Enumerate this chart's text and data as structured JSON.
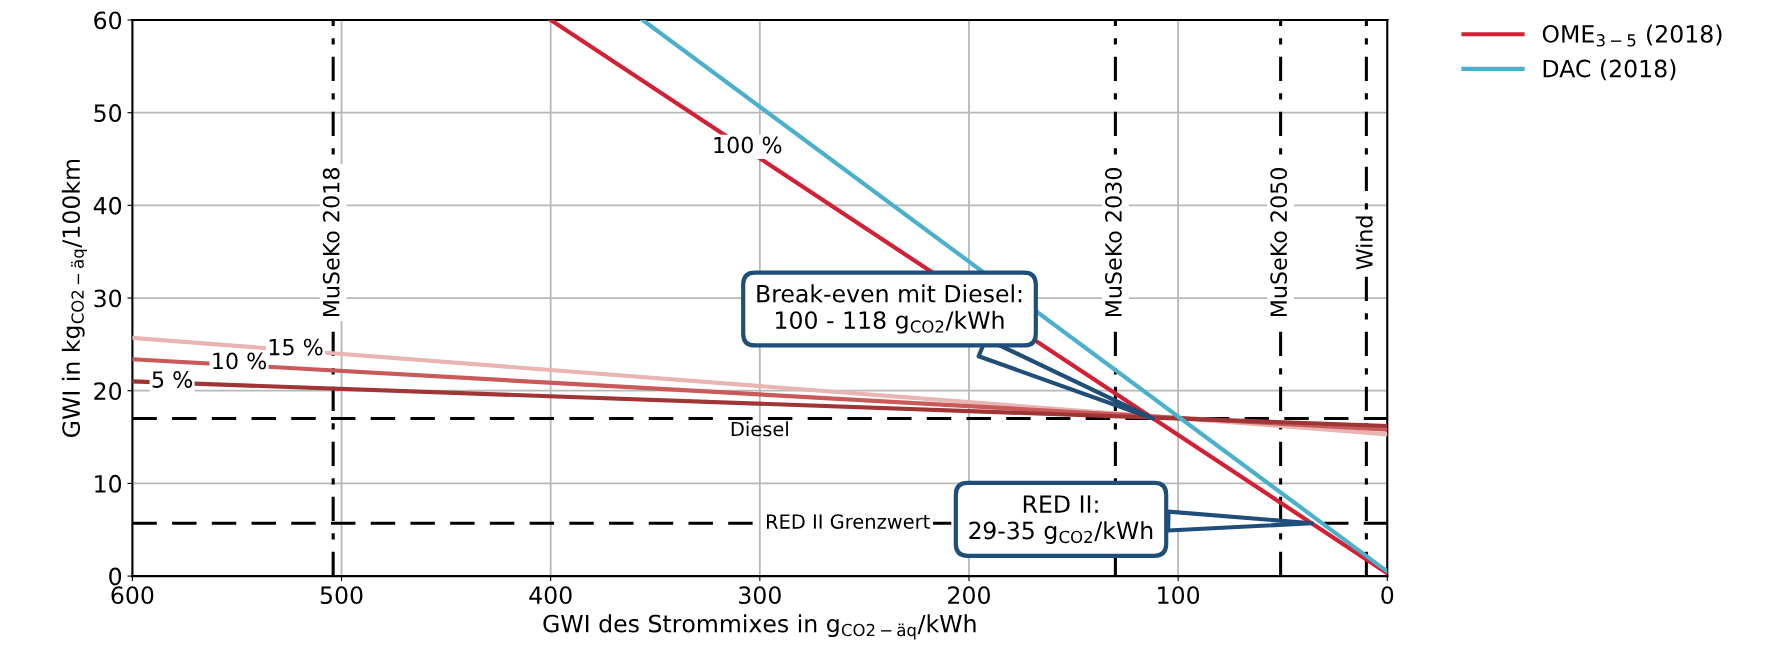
{
  "chart_data": {
    "type": "line",
    "xlabel": "GWI des Strommixes in g$_{CO2−äq}$/kWh",
    "ylabel": "GWI in kg$_{CO2−äq}$/100km",
    "xlim": [
      600,
      0
    ],
    "xticks": [
      600,
      500,
      400,
      300,
      200,
      100,
      0
    ],
    "ylim": [
      0,
      60
    ],
    "yticks": [
      0,
      10,
      20,
      30,
      40,
      50,
      60
    ],
    "grid": true,
    "legend": "top right",
    "line_style": "solid",
    "marker": "none",
    "series": [
      {
        "color": "#e8b4b4",
        "x": [
          600,
          0
        ],
        "values": [
          25.7,
          15.3
        ]
      },
      {
        "color": "#c85a5a",
        "x": [
          600,
          0
        ],
        "values": [
          23.4,
          15.8
        ]
      },
      {
        "color": "#a03535",
        "x": [
          600,
          0
        ],
        "values": [
          21.0,
          16.2
        ]
      },
      {
        "name": "OME$_{3−5}$ (2018)",
        "color": "#d42035",
        "x": [
          400,
          0
        ],
        "values": [
          60,
          0.3
        ]
      },
      {
        "name": "DAC (2018)",
        "color": "#4bb0cc",
        "x": [
          356,
          0
        ],
        "values": [
          60,
          0.5
        ]
      }
    ],
    "ref_lines": [
      {
        "axis": "y",
        "value": 17,
        "label": "Diesel",
        "line_style": "dashed",
        "color": "#000000"
      },
      {
        "axis": "y",
        "value": 5.7,
        "label": "RED II Grenzwert",
        "line_style": "dashed",
        "color": "#000000"
      },
      {
        "axis": "x",
        "value": 504,
        "label": "MuSeKo 2018",
        "line_style": "dashdot",
        "color": "#000000"
      },
      {
        "axis": "x",
        "value": 130,
        "label": "MuSeKo 2030",
        "line_style": "dashdot",
        "color": "#000000"
      },
      {
        "axis": "x",
        "value": 51,
        "label": "MuSeKo 2050",
        "line_style": "dashdot",
        "color": "#000000"
      },
      {
        "axis": "x",
        "value": 10,
        "label": "Wind",
        "line_style": "dashdot",
        "color": "#000000"
      }
    ],
    "annotations": [
      {
        "text": "100 %",
        "x": 306,
        "y": 46.3
      },
      {
        "text": "15 %",
        "x": 522,
        "y": 24.5
      },
      {
        "text": "10 %",
        "x": 549,
        "y": 23.0
      },
      {
        "text": "5 %",
        "x": 581,
        "y": 21.0
      },
      {
        "text": "Break-even mit Diesel:\n100 - 118 g$_{CO2}$/kWh",
        "x": 112,
        "y": 17
      },
      {
        "text": "RED II:\n29-35 g$_{CO2}$/kWh",
        "x": 36,
        "y": 5.7
      }
    ]
  }
}
